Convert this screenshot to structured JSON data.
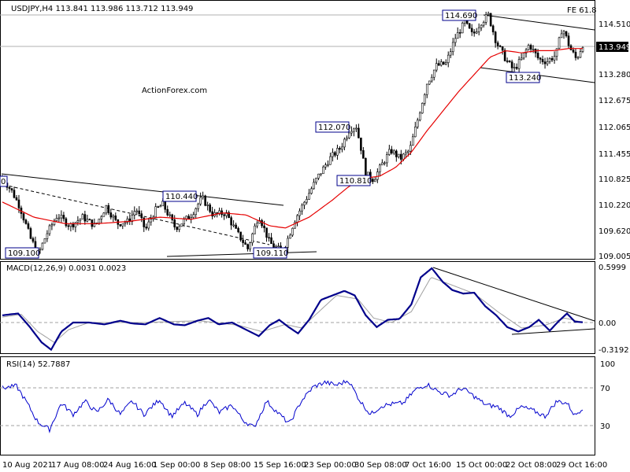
{
  "symbol_header": "USDJPY,H4  113.841 113.986 113.712 113.949",
  "watermark": "ActionForex.com",
  "fe_label": "FE 61.8",
  "colors": {
    "candle": "#000000",
    "ma": "#e60000",
    "macd": "#00008b",
    "signal": "#a0a0a0",
    "rsi": "#0000cd",
    "label_border": "#00008b",
    "trendline": "#000000"
  },
  "price_axis": {
    "ticks": [
      "114.510",
      "113.280",
      "112.675",
      "112.065",
      "111.455",
      "110.825",
      "110.220",
      "109.620",
      "109.005"
    ],
    "current": "113.949"
  },
  "price_labels": [
    "114.690",
    "113.240",
    "112.070",
    "110.810",
    "110.440",
    "109.100",
    "109.110",
    "0"
  ],
  "macd": {
    "title": "MACD(12,26,9) 0.0031 0.0023",
    "ticks": [
      "0.5999",
      "0.00",
      "-0.3192"
    ],
    "current": "0.00"
  },
  "rsi": {
    "title": "RSI(14) 52.7887",
    "ticks": [
      "100",
      "70",
      "30"
    ]
  },
  "time_axis": [
    "10 Aug 2021",
    "17 Aug 08:00",
    "24 Aug 16:00",
    "1 Sep 00:00",
    "8 Sep 08:00",
    "15 Sep 16:00",
    "23 Sep 00:00",
    "30 Sep 08:00",
    "7 Oct 16:00",
    "15 Oct 00:00",
    "22 Oct 08:00",
    "29 Oct 16:00"
  ],
  "chart_data": {
    "type": "candlestick",
    "series_name": "USDJPY,H4",
    "last_ohlc": {
      "open": 113.841,
      "high": 113.986,
      "low": 113.712,
      "close": 113.949
    },
    "ylim": [
      109.005,
      114.9
    ],
    "anchors": [
      {
        "t": 0,
        "p": 110.86
      },
      {
        "t": 12,
        "p": 110.55
      },
      {
        "t": 22,
        "p": 110.2
      },
      {
        "t": 36,
        "p": 109.45
      },
      {
        "t": 46,
        "p": 109.1
      },
      {
        "t": 56,
        "p": 109.55
      },
      {
        "t": 70,
        "p": 110.0
      },
      {
        "t": 86,
        "p": 109.75
      },
      {
        "t": 102,
        "p": 109.95
      },
      {
        "t": 118,
        "p": 109.75
      },
      {
        "t": 132,
        "p": 110.2
      },
      {
        "t": 146,
        "p": 109.8
      },
      {
        "t": 160,
        "p": 109.85
      },
      {
        "t": 170,
        "p": 110.15
      },
      {
        "t": 182,
        "p": 109.65
      },
      {
        "t": 194,
        "p": 110.1
      },
      {
        "t": 204,
        "p": 110.25
      },
      {
        "t": 220,
        "p": 109.7
      },
      {
        "t": 240,
        "p": 110.0
      },
      {
        "t": 254,
        "p": 110.4
      },
      {
        "t": 268,
        "p": 110.0
      },
      {
        "t": 284,
        "p": 110.05
      },
      {
        "t": 298,
        "p": 109.6
      },
      {
        "t": 312,
        "p": 109.22
      },
      {
        "t": 326,
        "p": 110.0
      },
      {
        "t": 340,
        "p": 109.35
      },
      {
        "t": 356,
        "p": 109.15
      },
      {
        "t": 364,
        "p": 109.5
      },
      {
        "t": 372,
        "p": 109.9
      },
      {
        "t": 384,
        "p": 110.3
      },
      {
        "t": 400,
        "p": 110.85
      },
      {
        "t": 416,
        "p": 111.3
      },
      {
        "t": 430,
        "p": 111.55
      },
      {
        "t": 442,
        "p": 112.0
      },
      {
        "t": 450,
        "p": 112.05
      },
      {
        "t": 456,
        "p": 111.55
      },
      {
        "t": 462,
        "p": 110.95
      },
      {
        "t": 472,
        "p": 110.82
      },
      {
        "t": 482,
        "p": 111.15
      },
      {
        "t": 494,
        "p": 111.5
      },
      {
        "t": 506,
        "p": 111.3
      },
      {
        "t": 518,
        "p": 111.5
      },
      {
        "t": 528,
        "p": 112.2
      },
      {
        "t": 540,
        "p": 113.05
      },
      {
        "t": 552,
        "p": 113.45
      },
      {
        "t": 564,
        "p": 113.5
      },
      {
        "t": 576,
        "p": 114.1
      },
      {
        "t": 588,
        "p": 114.45
      },
      {
        "t": 598,
        "p": 114.15
      },
      {
        "t": 608,
        "p": 114.45
      },
      {
        "t": 618,
        "p": 114.62
      },
      {
        "t": 628,
        "p": 114.0
      },
      {
        "t": 640,
        "p": 113.6
      },
      {
        "t": 650,
        "p": 113.35
      },
      {
        "t": 660,
        "p": 113.6
      },
      {
        "t": 670,
        "p": 113.95
      },
      {
        "t": 682,
        "p": 113.6
      },
      {
        "t": 692,
        "p": 113.55
      },
      {
        "t": 704,
        "p": 113.7
      },
      {
        "t": 712,
        "p": 114.35
      },
      {
        "t": 722,
        "p": 113.85
      },
      {
        "t": 730,
        "p": 113.6
      },
      {
        "t": 738,
        "p": 113.95
      }
    ],
    "ma_anchors": [
      {
        "t": 0,
        "p": 110.3
      },
      {
        "t": 40,
        "p": 109.95
      },
      {
        "t": 80,
        "p": 109.8
      },
      {
        "t": 120,
        "p": 109.8
      },
      {
        "t": 160,
        "p": 109.85
      },
      {
        "t": 200,
        "p": 109.95
      },
      {
        "t": 240,
        "p": 109.9
      },
      {
        "t": 280,
        "p": 110.05
      },
      {
        "t": 310,
        "p": 110.0
      },
      {
        "t": 340,
        "p": 109.75
      },
      {
        "t": 360,
        "p": 109.7
      },
      {
        "t": 390,
        "p": 109.95
      },
      {
        "t": 420,
        "p": 110.35
      },
      {
        "t": 440,
        "p": 110.65
      },
      {
        "t": 460,
        "p": 110.85
      },
      {
        "t": 480,
        "p": 110.9
      },
      {
        "t": 500,
        "p": 111.1
      },
      {
        "t": 520,
        "p": 111.45
      },
      {
        "t": 540,
        "p": 111.95
      },
      {
        "t": 560,
        "p": 112.4
      },
      {
        "t": 580,
        "p": 112.85
      },
      {
        "t": 600,
        "p": 113.25
      },
      {
        "t": 620,
        "p": 113.65
      },
      {
        "t": 640,
        "p": 113.8
      },
      {
        "t": 660,
        "p": 113.75
      },
      {
        "t": 680,
        "p": 113.8
      },
      {
        "t": 700,
        "p": 113.8
      },
      {
        "t": 720,
        "p": 113.85
      },
      {
        "t": 738,
        "p": 113.85
      }
    ],
    "macd_anchors": [
      {
        "t": 0,
        "v": 0.08
      },
      {
        "t": 20,
        "v": 0.1
      },
      {
        "t": 35,
        "v": -0.05
      },
      {
        "t": 50,
        "v": -0.22
      },
      {
        "t": 62,
        "v": -0.3
      },
      {
        "t": 75,
        "v": -0.1
      },
      {
        "t": 90,
        "v": 0.0
      },
      {
        "t": 110,
        "v": 0.0
      },
      {
        "t": 130,
        "v": -0.02
      },
      {
        "t": 150,
        "v": 0.02
      },
      {
        "t": 165,
        "v": -0.01
      },
      {
        "t": 182,
        "v": -0.02
      },
      {
        "t": 200,
        "v": 0.05
      },
      {
        "t": 218,
        "v": -0.02
      },
      {
        "t": 232,
        "v": -0.03
      },
      {
        "t": 248,
        "v": 0.02
      },
      {
        "t": 262,
        "v": 0.05
      },
      {
        "t": 275,
        "v": -0.02
      },
      {
        "t": 292,
        "v": 0.0
      },
      {
        "t": 310,
        "v": -0.08
      },
      {
        "t": 326,
        "v": -0.15
      },
      {
        "t": 340,
        "v": -0.03
      },
      {
        "t": 352,
        "v": 0.03
      },
      {
        "t": 364,
        "v": -0.05
      },
      {
        "t": 376,
        "v": -0.12
      },
      {
        "t": 390,
        "v": 0.03
      },
      {
        "t": 405,
        "v": 0.25
      },
      {
        "t": 420,
        "v": 0.3
      },
      {
        "t": 435,
        "v": 0.35
      },
      {
        "t": 448,
        "v": 0.3
      },
      {
        "t": 462,
        "v": 0.08
      },
      {
        "t": 476,
        "v": -0.05
      },
      {
        "t": 490,
        "v": 0.03
      },
      {
        "t": 505,
        "v": 0.04
      },
      {
        "t": 520,
        "v": 0.2
      },
      {
        "t": 532,
        "v": 0.5
      },
      {
        "t": 546,
        "v": 0.6
      },
      {
        "t": 560,
        "v": 0.45
      },
      {
        "t": 572,
        "v": 0.36
      },
      {
        "t": 586,
        "v": 0.32
      },
      {
        "t": 600,
        "v": 0.33
      },
      {
        "t": 614,
        "v": 0.18
      },
      {
        "t": 628,
        "v": 0.08
      },
      {
        "t": 642,
        "v": -0.05
      },
      {
        "t": 656,
        "v": -0.1
      },
      {
        "t": 670,
        "v": -0.05
      },
      {
        "t": 682,
        "v": 0.03
      },
      {
        "t": 696,
        "v": -0.09
      },
      {
        "t": 708,
        "v": 0.02
      },
      {
        "t": 718,
        "v": 0.1
      },
      {
        "t": 728,
        "v": 0.01
      },
      {
        "t": 738,
        "v": 0.003
      }
    ],
    "signal_anchors": [
      {
        "t": 0,
        "v": 0.06
      },
      {
        "t": 24,
        "v": 0.09
      },
      {
        "t": 45,
        "v": -0.1
      },
      {
        "t": 66,
        "v": -0.22
      },
      {
        "t": 84,
        "v": -0.08
      },
      {
        "t": 110,
        "v": 0.0
      },
      {
        "t": 180,
        "v": 0.0
      },
      {
        "t": 250,
        "v": 0.02
      },
      {
        "t": 300,
        "v": -0.03
      },
      {
        "t": 330,
        "v": -0.1
      },
      {
        "t": 360,
        "v": -0.02
      },
      {
        "t": 380,
        "v": -0.06
      },
      {
        "t": 400,
        "v": 0.1
      },
      {
        "t": 425,
        "v": 0.3
      },
      {
        "t": 452,
        "v": 0.26
      },
      {
        "t": 472,
        "v": 0.05
      },
      {
        "t": 495,
        "v": 0.0
      },
      {
        "t": 520,
        "v": 0.12
      },
      {
        "t": 545,
        "v": 0.5
      },
      {
        "t": 570,
        "v": 0.42
      },
      {
        "t": 600,
        "v": 0.32
      },
      {
        "t": 630,
        "v": 0.12
      },
      {
        "t": 660,
        "v": -0.06
      },
      {
        "t": 690,
        "v": -0.03
      },
      {
        "t": 715,
        "v": 0.05
      },
      {
        "t": 738,
        "v": 0.002
      }
    ],
    "rsi_anchors": [
      {
        "t": 0,
        "v": 74
      },
      {
        "t": 18,
        "v": 76
      },
      {
        "t": 30,
        "v": 60
      },
      {
        "t": 45,
        "v": 38
      },
      {
        "t": 60,
        "v": 30
      },
      {
        "t": 75,
        "v": 58
      },
      {
        "t": 90,
        "v": 46
      },
      {
        "t": 105,
        "v": 60
      },
      {
        "t": 120,
        "v": 48
      },
      {
        "t": 135,
        "v": 62
      },
      {
        "t": 150,
        "v": 46
      },
      {
        "t": 165,
        "v": 60
      },
      {
        "t": 180,
        "v": 46
      },
      {
        "t": 200,
        "v": 62
      },
      {
        "t": 215,
        "v": 44
      },
      {
        "t": 232,
        "v": 58
      },
      {
        "t": 248,
        "v": 46
      },
      {
        "t": 262,
        "v": 62
      },
      {
        "t": 276,
        "v": 48
      },
      {
        "t": 292,
        "v": 56
      },
      {
        "t": 306,
        "v": 40
      },
      {
        "t": 320,
        "v": 32
      },
      {
        "t": 336,
        "v": 60
      },
      {
        "t": 350,
        "v": 48
      },
      {
        "t": 365,
        "v": 36
      },
      {
        "t": 380,
        "v": 60
      },
      {
        "t": 395,
        "v": 75
      },
      {
        "t": 410,
        "v": 80
      },
      {
        "t": 425,
        "v": 77
      },
      {
        "t": 440,
        "v": 82
      },
      {
        "t": 455,
        "v": 60
      },
      {
        "t": 468,
        "v": 46
      },
      {
        "t": 482,
        "v": 55
      },
      {
        "t": 496,
        "v": 57
      },
      {
        "t": 510,
        "v": 58
      },
      {
        "t": 525,
        "v": 72
      },
      {
        "t": 540,
        "v": 78
      },
      {
        "t": 555,
        "v": 70
      },
      {
        "t": 570,
        "v": 66
      },
      {
        "t": 585,
        "v": 74
      },
      {
        "t": 600,
        "v": 65
      },
      {
        "t": 615,
        "v": 56
      },
      {
        "t": 630,
        "v": 54
      },
      {
        "t": 645,
        "v": 44
      },
      {
        "t": 660,
        "v": 54
      },
      {
        "t": 675,
        "v": 50
      },
      {
        "t": 690,
        "v": 44
      },
      {
        "t": 705,
        "v": 60
      },
      {
        "t": 718,
        "v": 58
      },
      {
        "t": 728,
        "v": 45
      },
      {
        "t": 738,
        "v": 53
      }
    ]
  }
}
